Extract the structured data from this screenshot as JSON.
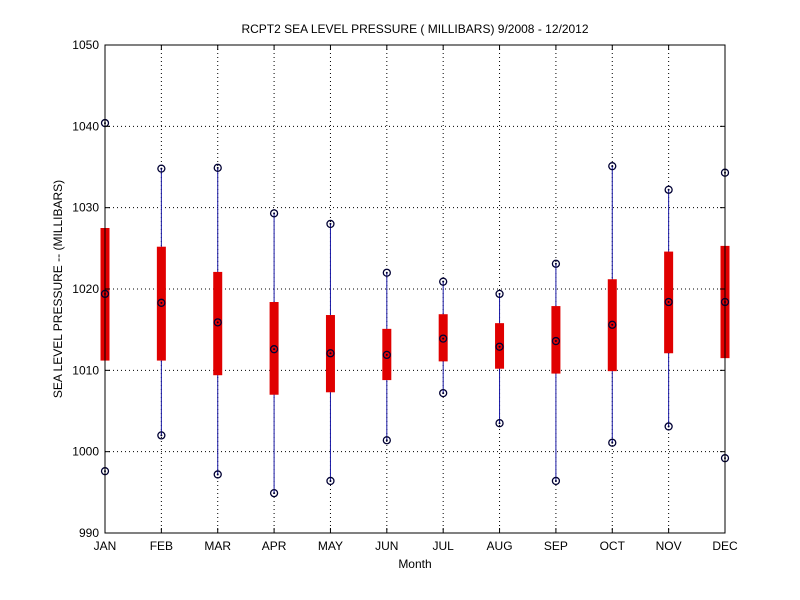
{
  "chart_data": {
    "type": "box",
    "title": "RCPT2  SEA LEVEL PRESSURE ( MILLIBARS) 9/2008 - 12/2012",
    "xlabel": "Month",
    "ylabel": "SEA LEVEL PRESSURE -- (MILLIBARS)",
    "ylim": [
      990,
      1050
    ],
    "yticks": [
      990,
      1000,
      1010,
      1020,
      1030,
      1040,
      1050
    ],
    "grid": true,
    "categories": [
      "JAN",
      "FEB",
      "MAR",
      "APR",
      "MAY",
      "JUN",
      "JUL",
      "AUG",
      "SEP",
      "OCT",
      "NOV",
      "DEC"
    ],
    "min": [
      997.6,
      1002.0,
      997.2,
      994.9,
      996.4,
      1001.4,
      1007.2,
      1003.5,
      996.4,
      1001.1,
      1003.1,
      999.2
    ],
    "q1": [
      1011.2,
      1011.2,
      1009.4,
      1007.0,
      1007.3,
      1008.8,
      1011.1,
      1010.2,
      1009.6,
      1009.9,
      1012.1,
      1011.5
    ],
    "median": [
      1019.4,
      1018.3,
      1015.9,
      1012.6,
      1012.1,
      1011.9,
      1013.9,
      1012.9,
      1013.6,
      1015.6,
      1018.4,
      1018.4
    ],
    "q3": [
      1027.5,
      1025.2,
      1022.1,
      1018.4,
      1016.8,
      1015.1,
      1016.9,
      1015.8,
      1017.9,
      1021.2,
      1024.6,
      1025.3
    ],
    "max": [
      1040.4,
      1034.8,
      1034.9,
      1029.3,
      1028.0,
      1022.0,
      1020.9,
      1019.4,
      1023.1,
      1035.1,
      1032.2,
      1034.3
    ],
    "colors": {
      "whisker": "#1a1aa6",
      "box": "#e00000",
      "marker": "#000033",
      "grid": "#000000"
    }
  }
}
